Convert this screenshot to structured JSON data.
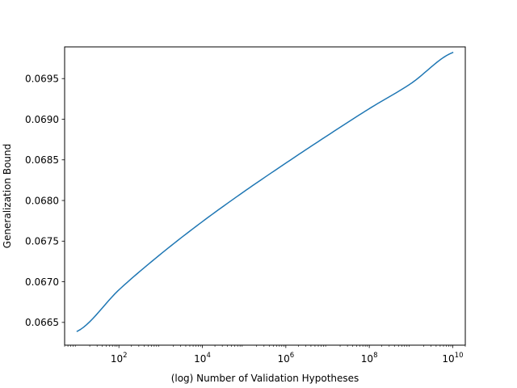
{
  "chart_data": {
    "type": "line",
    "xscale": "log",
    "xlabel": "(log) Number of Validation Hypotheses",
    "ylabel": "Generalization Bound",
    "xlim": [
      5.0,
      20000000000
    ],
    "ylim": [
      0.06622,
      0.06989
    ],
    "x_ticks": [
      {
        "value": 100,
        "base": "10",
        "exp": "2"
      },
      {
        "value": 10000,
        "base": "10",
        "exp": "4"
      },
      {
        "value": 1000000,
        "base": "10",
        "exp": "6"
      },
      {
        "value": 100000000,
        "base": "10",
        "exp": "8"
      },
      {
        "value": 10000000000,
        "base": "10",
        "exp": "10"
      }
    ],
    "y_ticks": [
      {
        "value": 0.0665,
        "label": "0.0665"
      },
      {
        "value": 0.067,
        "label": "0.0670"
      },
      {
        "value": 0.0675,
        "label": "0.0675"
      },
      {
        "value": 0.068,
        "label": "0.0680"
      },
      {
        "value": 0.0685,
        "label": "0.0685"
      },
      {
        "value": 0.069,
        "label": "0.0690"
      },
      {
        "value": 0.0695,
        "label": "0.0695"
      }
    ],
    "series": [
      {
        "color": "#1f77b4",
        "x": [
          10,
          100,
          1000,
          10000,
          100000,
          1000000,
          10000000,
          100000000,
          1000000000,
          10000000000
        ],
        "y": [
          0.06639,
          0.0669,
          0.06734,
          0.06774,
          0.06811,
          0.06846,
          0.0688,
          0.06913,
          0.06944,
          0.06982
        ]
      }
    ],
    "grid": false,
    "legend": "none"
  }
}
